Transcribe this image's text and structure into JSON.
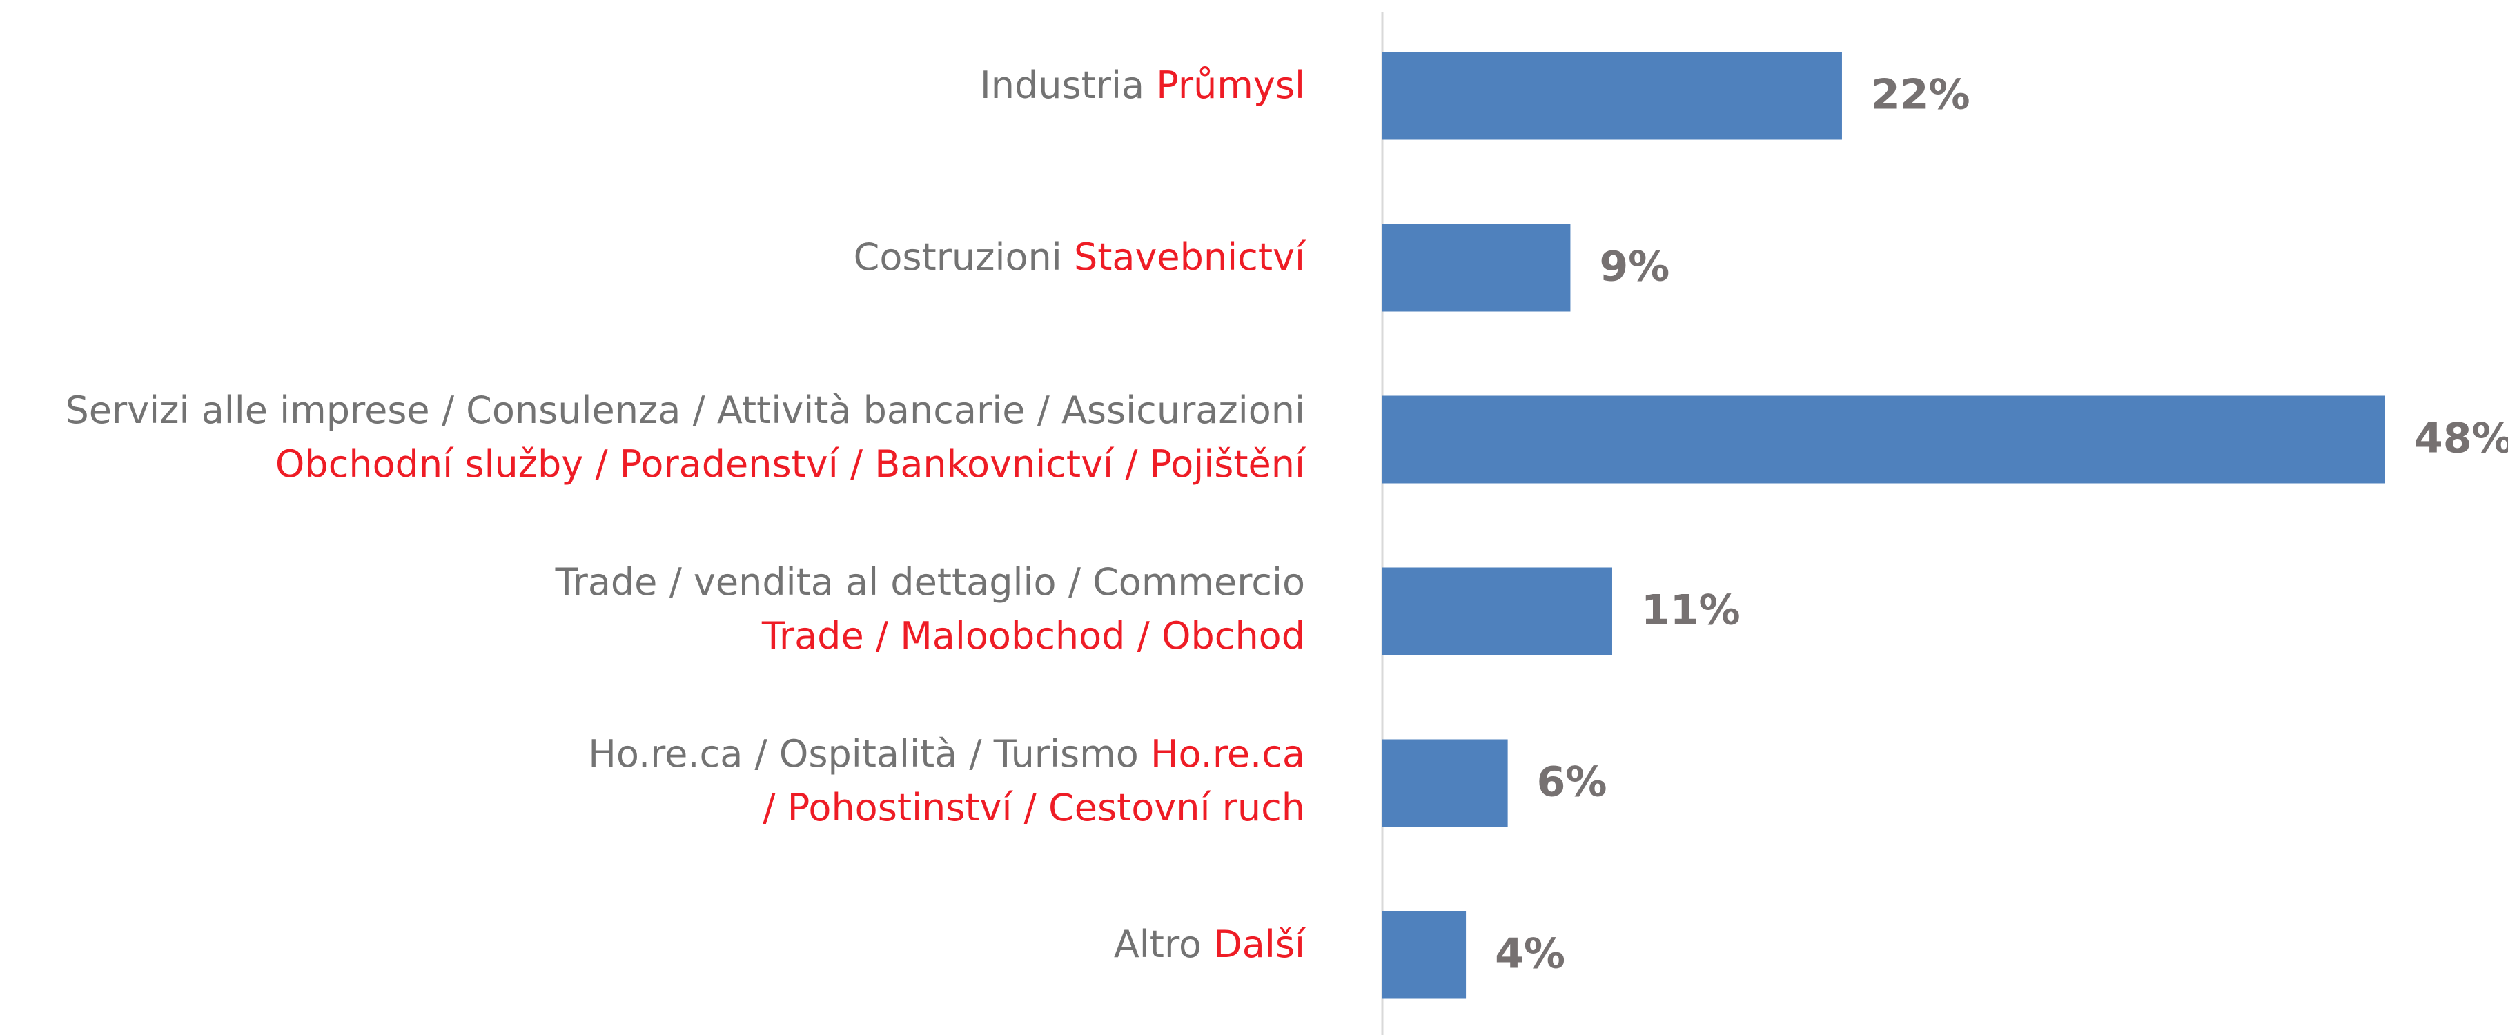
{
  "chart_data": {
    "type": "bar",
    "orientation": "horizontal",
    "categories": [
      {
        "it": "Industria",
        "cs": "Průmysl"
      },
      {
        "it": "Costruzioni",
        "cs": "Stavebnictví"
      },
      {
        "it": "Servizi alle imprese / Consulenza / Attività bancarie / Assicurazioni",
        "cs": "Obchodní služby / Poradenství / Bankovnictví / Pojištění"
      },
      {
        "it": "Trade / vendita al dettaglio / Commercio",
        "cs": "Trade / Maloobchod / Obchod"
      },
      {
        "it": "Ho.re.ca / Ospitalità / Turismo",
        "cs": [
          "Ho.re.ca",
          "/ Pohostinství / Cestovní ruch"
        ]
      },
      {
        "it": "Altro",
        "cs": "Další"
      }
    ],
    "values": [
      22,
      9,
      48,
      11,
      6,
      4
    ],
    "value_labels": [
      "22%",
      "9%",
      "48%",
      "11%",
      "6%",
      "4%"
    ],
    "color": "#4f81bd",
    "label_colors": {
      "it": "#737373",
      "cs": "#ee1c25"
    }
  }
}
